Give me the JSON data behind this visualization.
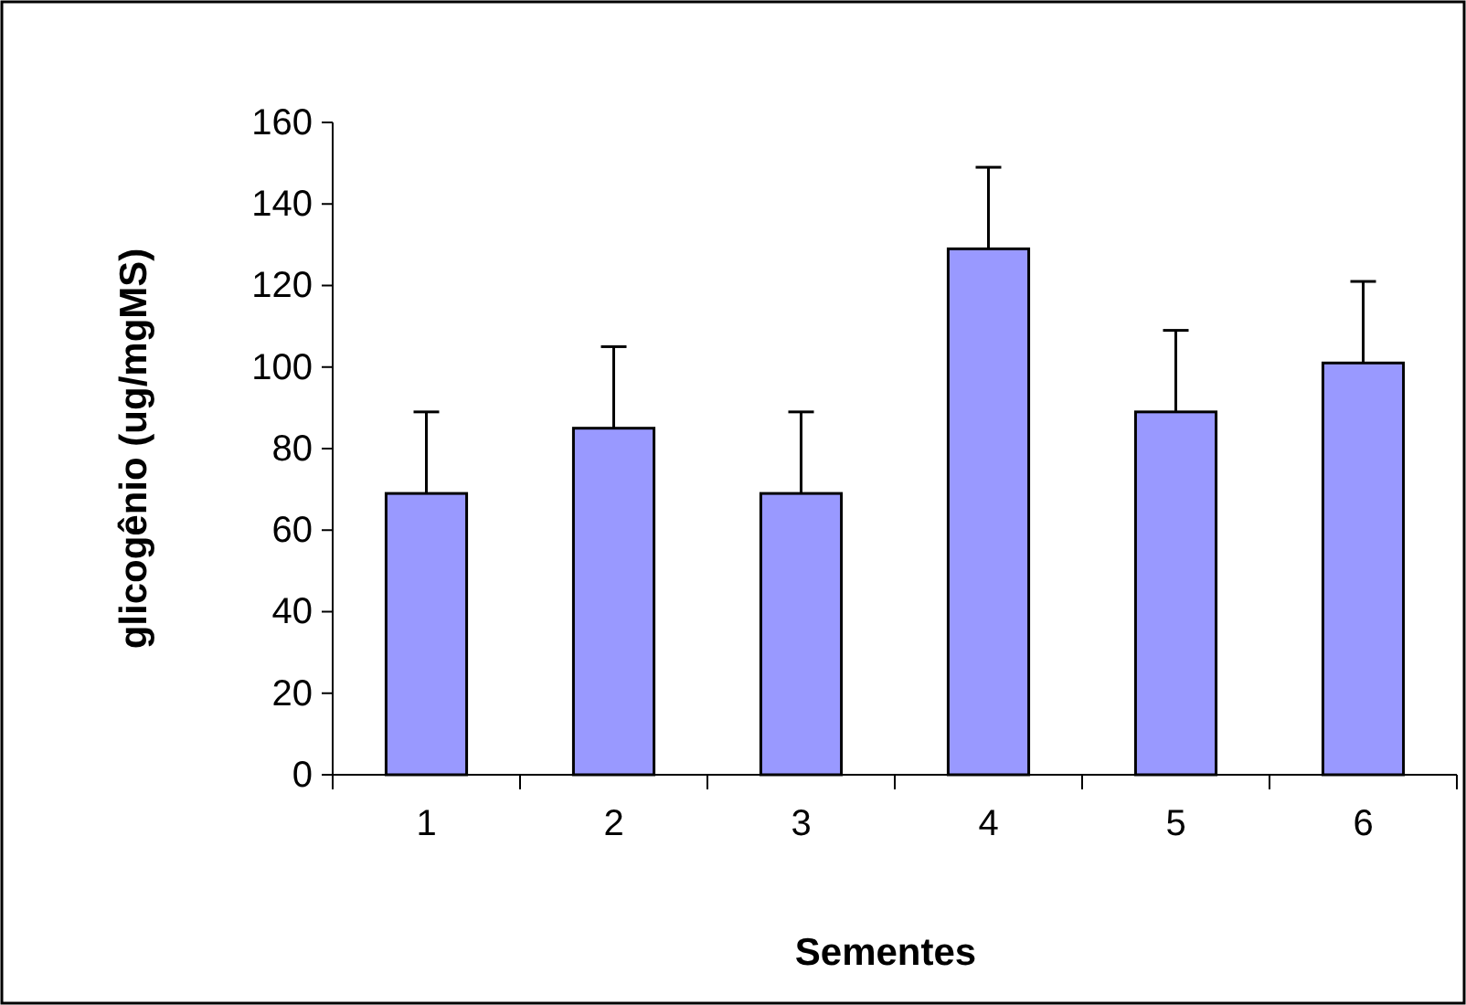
{
  "chart_data": {
    "type": "bar",
    "xlabel": "Sementes",
    "ylabel": "glicogênio (ug/mgMS)",
    "categories": [
      "1",
      "2",
      "3",
      "4",
      "5",
      "6"
    ],
    "values": [
      69,
      85,
      69,
      129,
      89,
      101
    ],
    "errors": [
      [
        69,
        89
      ],
      [
        85,
        105
      ],
      [
        69,
        89
      ],
      [
        129,
        149
      ],
      [
        89,
        109
      ],
      [
        101,
        121
      ]
    ],
    "color": "#9999ff",
    "ylim": [
      0,
      160
    ],
    "yticks": [
      0,
      20,
      40,
      60,
      80,
      100,
      120,
      140,
      160
    ],
    "grid": false
  }
}
